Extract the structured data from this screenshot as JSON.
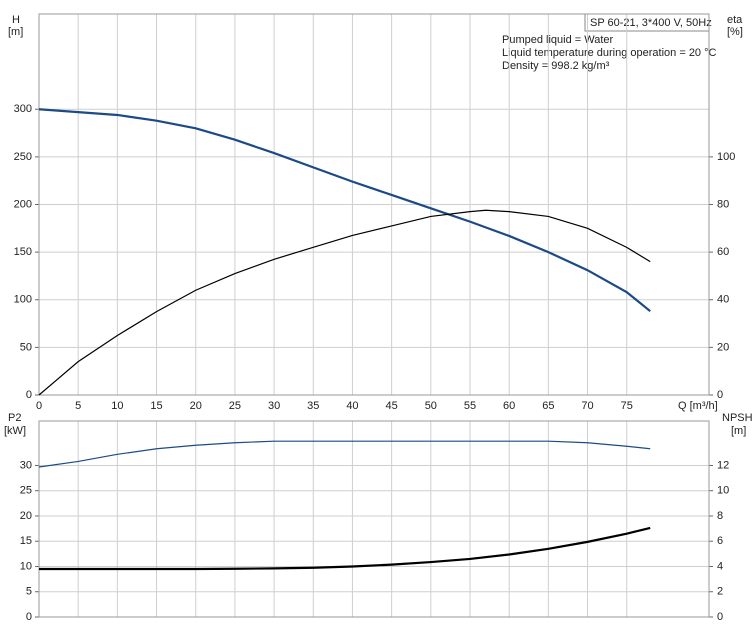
{
  "chart_data": [
    {
      "type": "line",
      "title": "SP 60-21, 3*400 V, 50Hz",
      "annotations": [
        "Pumped liquid = Water",
        "Liquid temperature during operation = 20 °C",
        "Density = 998.2 kg/m³"
      ],
      "xlabel": "Q [m³/h]",
      "ylabel": [
        "H",
        "[m]"
      ],
      "y2label": [
        "eta",
        "[%]"
      ],
      "x": [
        0,
        5,
        10,
        15,
        20,
        25,
        30,
        35,
        40,
        45,
        50,
        55,
        57,
        60,
        65,
        70,
        75,
        78
      ],
      "xlim": [
        0,
        85.5
      ],
      "xticks": [
        0,
        5,
        10,
        15,
        20,
        25,
        30,
        35,
        40,
        45,
        50,
        55,
        60,
        65,
        70,
        75
      ],
      "ylim": [
        0,
        400
      ],
      "yticks": [
        0,
        50,
        100,
        150,
        200,
        250,
        300
      ],
      "y2lim": [
        0,
        160
      ],
      "y2ticks": [
        0,
        20,
        40,
        60,
        80,
        100
      ],
      "grid": true,
      "series": [
        {
          "name": "H",
          "color": "#1b4a86",
          "values": [
            300,
            297,
            294,
            288,
            280,
            268,
            254,
            239,
            224,
            210,
            196,
            182,
            176,
            167,
            150,
            131,
            108,
            88
          ]
        },
        {
          "name": "eta",
          "color": "#000000",
          "axis": "y2",
          "values": [
            0,
            14,
            25,
            35,
            44,
            51,
            57,
            62,
            67,
            71,
            75,
            77,
            77.6,
            77,
            75,
            70,
            62,
            56
          ]
        }
      ]
    },
    {
      "type": "line",
      "ylabel": [
        "P2",
        "[kW]"
      ],
      "y2label": [
        "NPSH",
        "[m]"
      ],
      "x": [
        0,
        5,
        10,
        15,
        20,
        25,
        30,
        35,
        40,
        45,
        50,
        55,
        60,
        65,
        70,
        75,
        78
      ],
      "xlim": [
        0,
        85.5
      ],
      "ylim": [
        0,
        38.8
      ],
      "yticks": [
        0,
        5,
        10,
        15,
        20,
        25,
        30
      ],
      "y2lim": [
        0,
        15.52
      ],
      "y2ticks": [
        0,
        2,
        4,
        6,
        8,
        10,
        12
      ],
      "grid": true,
      "series": [
        {
          "name": "P2",
          "color": "#1b4a86",
          "values": [
            29.7,
            30.8,
            32.2,
            33.3,
            34,
            34.5,
            34.8,
            34.8,
            34.8,
            34.8,
            34.8,
            34.8,
            34.8,
            34.8,
            34.5,
            33.8,
            33.3
          ]
        },
        {
          "name": "NPSH",
          "color": "#000000",
          "axis": "y2",
          "values": [
            3.8,
            3.8,
            3.8,
            3.8,
            3.8,
            3.82,
            3.85,
            3.9,
            4.0,
            4.15,
            4.35,
            4.6,
            4.95,
            5.4,
            5.95,
            6.6,
            7.05
          ]
        }
      ]
    }
  ]
}
